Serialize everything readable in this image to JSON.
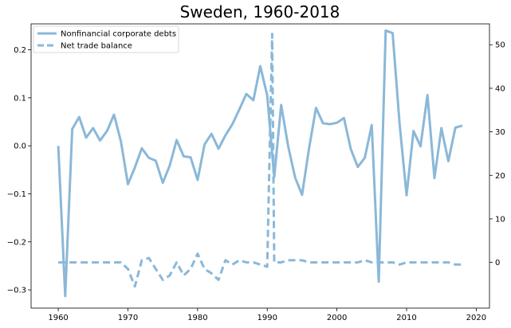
{
  "chart_data": {
    "type": "line",
    "title": "Sweden, 1960-2018",
    "xlabel": "",
    "ylabel": "",
    "xlim": [
      1956.1,
      2021.9
    ],
    "ylim": [
      -0.338,
      0.254
    ],
    "y2lim": [
      -10.5,
      54.8
    ],
    "x_ticks": [
      1960,
      1970,
      1980,
      1990,
      2000,
      2010,
      2020
    ],
    "y_ticks": [
      -0.3,
      -0.2,
      -0.1,
      0.0,
      0.1,
      0.2
    ],
    "y_tick_labels": [
      "−0.3",
      "−0.2",
      "−0.1",
      "0.0",
      "0.1",
      "0.2"
    ],
    "y2_ticks": [
      0,
      10,
      20,
      30,
      40,
      50
    ],
    "grid": false,
    "legend_position": "top-left",
    "series": [
      {
        "name": "Nonfinancial corporate debts",
        "axis": "left",
        "style": "solid",
        "color": "#8ab8d8",
        "x": [
          1960,
          1961,
          1962,
          1963,
          1964,
          1965,
          1966,
          1967,
          1968,
          1969,
          1970,
          1971,
          1972,
          1973,
          1974,
          1975,
          1976,
          1977,
          1978,
          1979,
          1980,
          1981,
          1982,
          1983,
          1984,
          1985,
          1986,
          1987,
          1988,
          1989,
          1990,
          1991,
          1992,
          1993,
          1994,
          1995,
          1996,
          1997,
          1998,
          1999,
          2000,
          2001,
          2002,
          2003,
          2004,
          2005,
          2006,
          2007,
          2008,
          2009,
          2010,
          2011,
          2012,
          2013,
          2014,
          2015,
          2016,
          2017,
          2018
        ],
        "values": [
          0.0,
          -0.313,
          0.035,
          0.06,
          0.017,
          0.037,
          0.011,
          0.031,
          0.065,
          0.009,
          -0.08,
          -0.045,
          -0.005,
          -0.025,
          -0.031,
          -0.077,
          -0.041,
          0.012,
          -0.022,
          -0.024,
          -0.071,
          0.003,
          0.025,
          -0.006,
          0.022,
          0.045,
          0.076,
          0.108,
          0.095,
          0.166,
          0.105,
          -0.065,
          0.085,
          -0.001,
          -0.066,
          -0.102,
          -0.005,
          0.079,
          0.047,
          0.045,
          0.048,
          0.058,
          -0.007,
          -0.044,
          -0.025,
          0.043,
          -0.283,
          0.24,
          0.235,
          0.045,
          -0.103,
          0.031,
          -0.001,
          0.106,
          -0.067,
          0.037,
          -0.032,
          0.038,
          0.042
        ]
      },
      {
        "name": "Net trade balance",
        "axis": "right",
        "style": "dashed",
        "color": "#8ab8d8",
        "x": [
          1960,
          1961,
          1962,
          1963,
          1964,
          1965,
          1966,
          1967,
          1968,
          1969,
          1970,
          1971,
          1972,
          1973,
          1974,
          1975,
          1976,
          1977,
          1978,
          1979,
          1980,
          1981,
          1982,
          1983,
          1984,
          1985,
          1986,
          1987,
          1988,
          1989,
          1990,
          1990.7,
          1991,
          1992,
          1993,
          1994,
          1995,
          1996,
          1997,
          1998,
          1999,
          2000,
          2001,
          2002,
          2003,
          2004,
          2005,
          2006,
          2007,
          2008,
          2009,
          2010,
          2011,
          2012,
          2013,
          2014,
          2015,
          2016,
          2017,
          2018
        ],
        "values": [
          0.0,
          0.0,
          0.0,
          0.0,
          0.0,
          0.0,
          0.0,
          0.0,
          0.0,
          0.0,
          -1.5,
          -5.5,
          0.5,
          1.0,
          -1.5,
          -4.0,
          -3.0,
          0.0,
          -3.0,
          -1.5,
          2.0,
          -1.5,
          -2.5,
          -4.0,
          0.5,
          -0.5,
          0.5,
          0.0,
          0.0,
          -0.5,
          -1.0,
          52.5,
          0.0,
          0.0,
          0.5,
          0.5,
          0.5,
          0.0,
          0.0,
          0.0,
          0.0,
          0.0,
          0.0,
          0.0,
          0.0,
          0.5,
          0.0,
          0.0,
          0.0,
          0.0,
          -0.5,
          0.0,
          0.0,
          0.0,
          0.0,
          0.0,
          0.0,
          0.0,
          -0.5,
          -0.5
        ]
      }
    ]
  }
}
